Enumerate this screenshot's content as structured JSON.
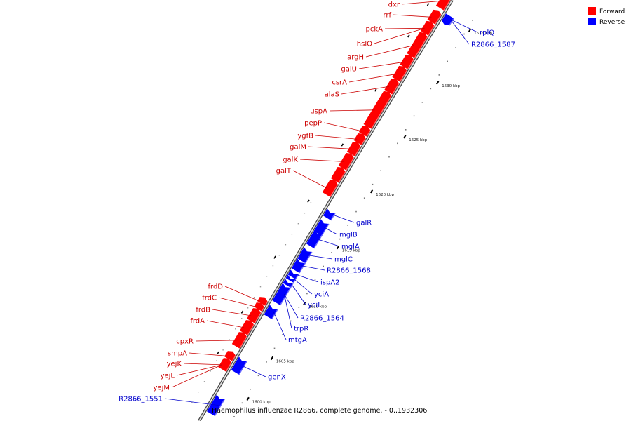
{
  "caption": "Haemophilus influenzae R2866, complete genome. - 0..1932306",
  "legend": {
    "forward_label": "Forward",
    "reverse_label": "Reverse",
    "forward_color": "#ff0000",
    "reverse_color": "#0000ff"
  },
  "colors": {
    "forward_text": "#cc0000",
    "reverse_text": "#0000cc",
    "backbone": "#888888"
  },
  "ticks": [
    "1600 kbp",
    "1605 kbp",
    "1610 kbp",
    "1615 kbp",
    "1620 kbp",
    "1625 kbp",
    "1630 kbp",
    "1635 kbp"
  ],
  "forward_genes": [
    "dxr",
    "rrf",
    "pckA",
    "hslO",
    "argH",
    "galU",
    "csrA",
    "alaS",
    "uspA",
    "pepP",
    "ygfB",
    "galM",
    "galK",
    "galT",
    "frdD",
    "frdC",
    "frdB",
    "frdA",
    "cpxR",
    "smpA",
    "yejK",
    "yejL",
    "yejM"
  ],
  "reverse_genes": [
    "rplQ",
    "R2866_1587",
    "galR",
    "mglB",
    "mglA",
    "mglC",
    "R2866_1568",
    "ispA2",
    "yciA",
    "yciI",
    "R2866_1564",
    "trpR",
    "mtgA",
    "genX",
    "R2866_1551"
  ]
}
